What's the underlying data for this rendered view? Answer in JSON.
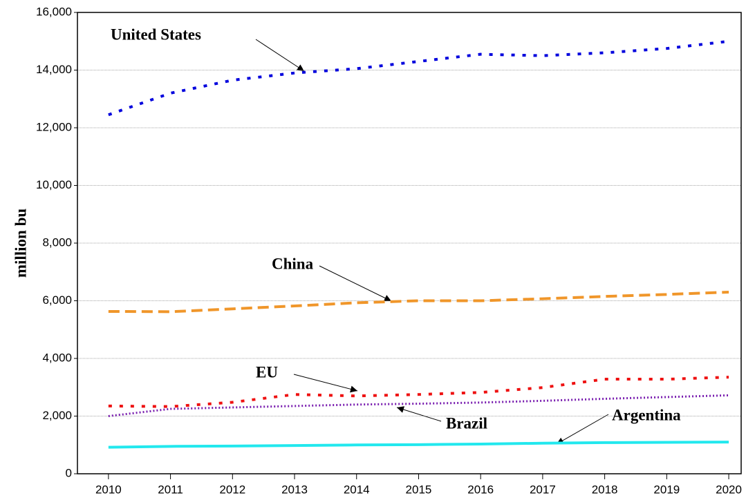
{
  "chart_data": {
    "type": "line",
    "y_label": "million bu",
    "x": [
      2010,
      2011,
      2012,
      2013,
      2014,
      2015,
      2016,
      2017,
      2018,
      2019,
      2020
    ],
    "xlim": [
      2009.5,
      2020.2
    ],
    "xticks": [
      2010,
      2011,
      2012,
      2013,
      2014,
      2015,
      2016,
      2017,
      2018,
      2019,
      2020
    ],
    "ylim": [
      0,
      16000
    ],
    "yticks": [
      0,
      {
        "value": 2000,
        "label": "2,000"
      },
      {
        "value": 4000,
        "label": "4,000"
      },
      {
        "value": 6000,
        "label": "6,000"
      },
      {
        "value": 8000,
        "label": "8,000"
      },
      {
        "value": 10000,
        "label": "10,000"
      },
      {
        "value": 12000,
        "label": "12,000"
      },
      {
        "value": 14000,
        "label": "14,000"
      },
      {
        "value": 16000,
        "label": "16,000"
      }
    ],
    "grid": true,
    "series": [
      {
        "name": "United States",
        "color": "#0000dd",
        "style": "dotted",
        "values": [
          12450,
          13200,
          13650,
          13900,
          14050,
          14300,
          14550,
          14500,
          14600,
          14750,
          15000
        ]
      },
      {
        "name": "China",
        "color": "#f0962a",
        "style": "dashed",
        "values": [
          5630,
          5620,
          5720,
          5820,
          5930,
          6000,
          6000,
          6070,
          6150,
          6220,
          6300
        ]
      },
      {
        "name": "EU",
        "color": "#ee1111",
        "style": "dotted",
        "values": [
          2350,
          2330,
          2480,
          2750,
          2700,
          2750,
          2820,
          2990,
          3280,
          3280,
          3350
        ]
      },
      {
        "name": "Brazil",
        "color": "#7a1fb0",
        "style": "finedotted",
        "values": [
          2000,
          2250,
          2300,
          2350,
          2400,
          2430,
          2470,
          2530,
          2600,
          2660,
          2720
        ]
      },
      {
        "name": "Argentina",
        "color": "#22e8ee",
        "style": "solid",
        "values": [
          920,
          950,
          960,
          980,
          1000,
          1010,
          1030,
          1060,
          1080,
          1090,
          1100
        ]
      }
    ]
  }
}
